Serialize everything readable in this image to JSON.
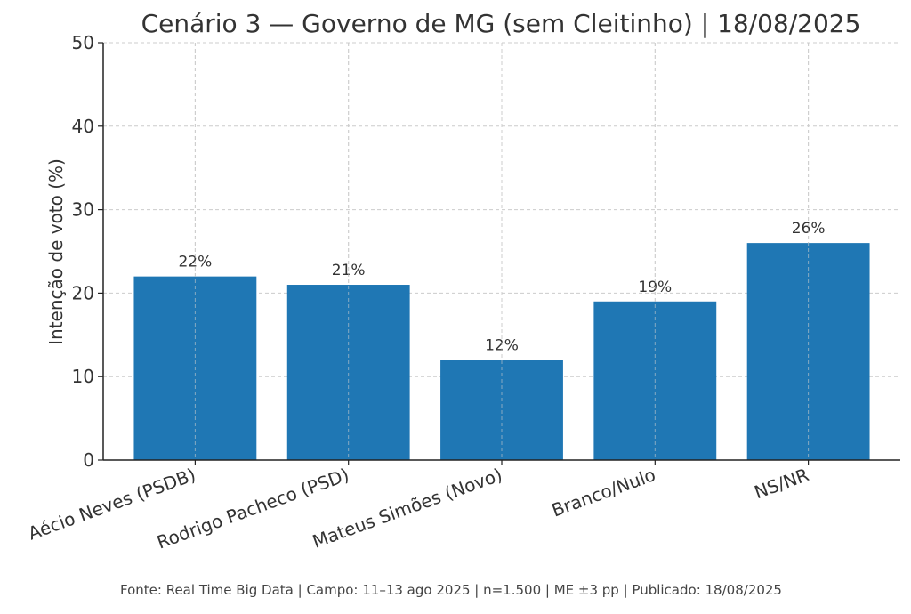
{
  "chart_data": {
    "type": "bar",
    "title": "Cenário 3 — Governo de MG (sem Cleitinho) | 18/08/2025",
    "xlabel": "",
    "ylabel": "Intenção de voto (%)",
    "categories": [
      "Aécio Neves (PSDB)",
      "Rodrigo Pacheco (PSD)",
      "Mateus Simões (Novo)",
      "Branco/Nulo",
      "NS/NR"
    ],
    "values": [
      22,
      21,
      12,
      19,
      26
    ],
    "data_labels": [
      "22%",
      "21%",
      "12%",
      "19%",
      "26%"
    ],
    "ylim": [
      0,
      50
    ],
    "yticks": [
      0,
      10,
      20,
      30,
      40,
      50
    ],
    "grid": true,
    "bar_color": "#1f77b4"
  },
  "footer": "Fonte: Real Time Big Data | Campo: 11–13 ago 2025 | n=1.500 | ME ±3 pp | Publicado: 18/08/2025"
}
